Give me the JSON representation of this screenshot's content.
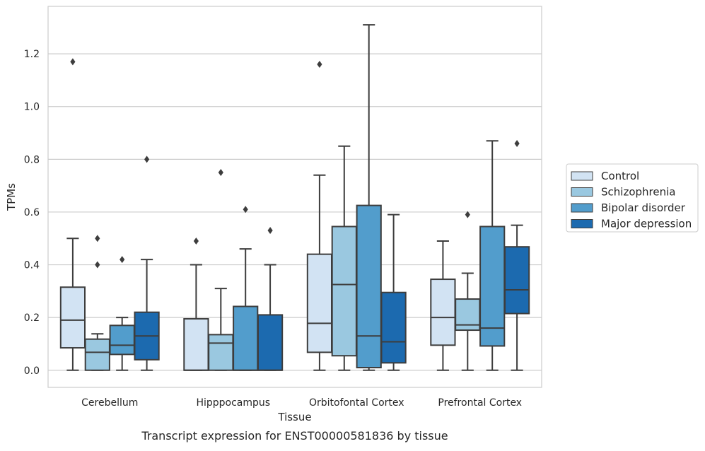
{
  "chart_data": {
    "type": "box",
    "title": "",
    "caption": "Transcript expression for ENST00000581836 by tissue",
    "xlabel": "Tissue",
    "ylabel": "TPMs",
    "ylim": [
      -0.065,
      1.38
    ],
    "yticks": [
      "0.0",
      "0.2",
      "0.4",
      "0.6",
      "0.8",
      "1.0",
      "1.2"
    ],
    "ytick_values": [
      0.0,
      0.2,
      0.4,
      0.6,
      0.8,
      1.0,
      1.2
    ],
    "grid": "horizontal",
    "legend_position": "right",
    "categories": [
      "Cerebellum",
      "Hipppocampus",
      "Orbitofontal Cortex",
      "Prefrontal Cortex"
    ],
    "series": [
      {
        "name": "Control",
        "color": "#d2e3f3",
        "boxes": [
          {
            "whislo": 0.0,
            "q1": 0.085,
            "med": 0.19,
            "q3": 0.315,
            "whishi": 0.5,
            "fliers": [
              1.17
            ]
          },
          {
            "whislo": 0.0,
            "q1": 0.0,
            "med": 0.0,
            "q3": 0.195,
            "whishi": 0.4,
            "fliers": [
              0.49
            ]
          },
          {
            "whislo": 0.0,
            "q1": 0.068,
            "med": 0.178,
            "q3": 0.44,
            "whishi": 0.74,
            "fliers": [
              1.16
            ]
          },
          {
            "whislo": 0.0,
            "q1": 0.095,
            "med": 0.2,
            "q3": 0.345,
            "whishi": 0.49,
            "fliers": []
          }
        ]
      },
      {
        "name": "Schizophrenia",
        "color": "#9ac8e0",
        "boxes": [
          {
            "whislo": 0.0,
            "q1": 0.0,
            "med": 0.068,
            "q3": 0.118,
            "whishi": 0.138,
            "fliers": [
              0.5,
              0.4
            ]
          },
          {
            "whislo": 0.0,
            "q1": 0.0,
            "med": 0.103,
            "q3": 0.135,
            "whishi": 0.31,
            "fliers": [
              0.75
            ]
          },
          {
            "whislo": 0.0,
            "q1": 0.055,
            "med": 0.325,
            "q3": 0.545,
            "whishi": 0.85,
            "fliers": []
          },
          {
            "whislo": 0.0,
            "q1": 0.152,
            "med": 0.172,
            "q3": 0.27,
            "whishi": 0.368,
            "fliers": [
              0.59
            ]
          }
        ]
      },
      {
        "name": "Bipolar disorder",
        "color": "#529dcc",
        "boxes": [
          {
            "whislo": 0.0,
            "q1": 0.06,
            "med": 0.095,
            "q3": 0.17,
            "whishi": 0.2,
            "fliers": [
              0.42
            ]
          },
          {
            "whislo": 0.0,
            "q1": 0.0,
            "med": 0.0,
            "q3": 0.242,
            "whishi": 0.46,
            "fliers": [
              0.61
            ]
          },
          {
            "whislo": 0.0,
            "q1": 0.01,
            "med": 0.13,
            "q3": 0.625,
            "whishi": 1.31,
            "fliers": []
          },
          {
            "whislo": 0.0,
            "q1": 0.092,
            "med": 0.16,
            "q3": 0.545,
            "whishi": 0.87,
            "fliers": []
          }
        ]
      },
      {
        "name": "Major depression",
        "color": "#1c6aaf",
        "boxes": [
          {
            "whislo": 0.0,
            "q1": 0.04,
            "med": 0.13,
            "q3": 0.22,
            "whishi": 0.42,
            "fliers": [
              0.8
            ]
          },
          {
            "whislo": 0.0,
            "q1": 0.0,
            "med": 0.0,
            "q3": 0.21,
            "whishi": 0.4,
            "fliers": [
              0.53
            ]
          },
          {
            "whislo": 0.0,
            "q1": 0.028,
            "med": 0.108,
            "q3": 0.295,
            "whishi": 0.59,
            "fliers": []
          },
          {
            "whislo": 0.0,
            "q1": 0.215,
            "med": 0.305,
            "q3": 0.468,
            "whishi": 0.55,
            "fliers": [
              0.86
            ]
          }
        ]
      }
    ]
  }
}
